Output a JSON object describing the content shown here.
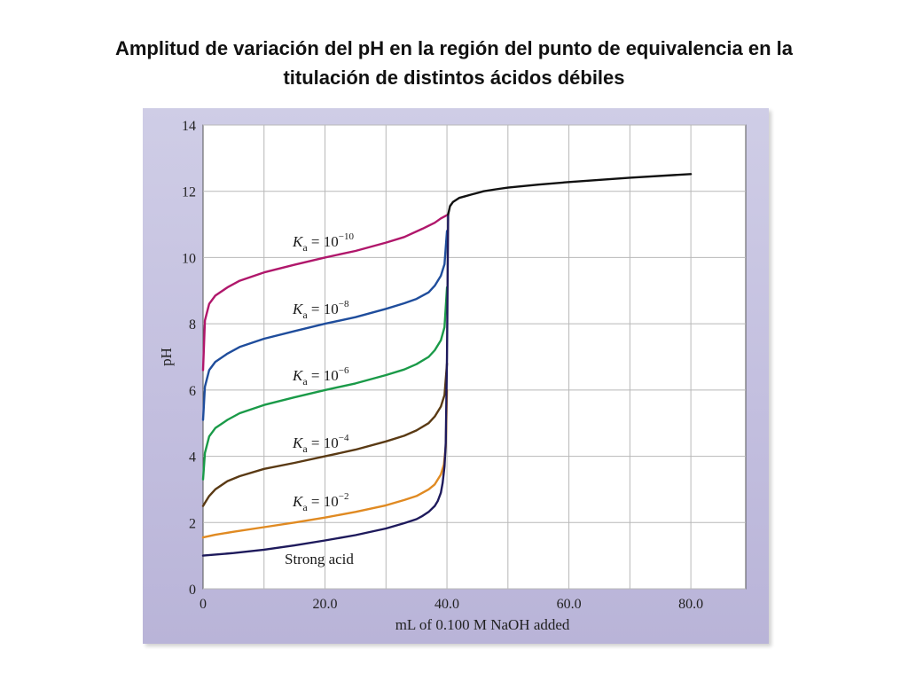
{
  "slide": {
    "title_line1": "Amplitud de variación del pH en la región del punto de equivalencia en la",
    "title_line2": "titulación de distintos ácidos débiles"
  },
  "chart_data": {
    "type": "line",
    "xlabel": "mL of 0.100 M NaOH added",
    "ylabel": "pH",
    "xlim": [
      0,
      89
    ],
    "ylim": [
      0,
      14
    ],
    "xticks": [
      0,
      20,
      40,
      60,
      80
    ],
    "xtick_labels": [
      "0",
      "20.0",
      "40.0",
      "60.0",
      "80.0"
    ],
    "yticks": [
      0,
      2,
      4,
      6,
      8,
      10,
      12,
      14
    ],
    "ytick_labels": [
      "0",
      "2",
      "4",
      "6",
      "8",
      "10",
      "12",
      "14"
    ],
    "grid": true,
    "common_tail": {
      "x": [
        40.2,
        40.5,
        41,
        42,
        43,
        44,
        45,
        46,
        48,
        50,
        55,
        60,
        70,
        80
      ],
      "y": [
        11.3,
        11.55,
        11.68,
        11.8,
        11.85,
        11.9,
        11.95,
        12.0,
        12.06,
        12.11,
        12.2,
        12.28,
        12.41,
        12.52
      ]
    },
    "series": [
      {
        "label_base": "K",
        "label_sub": "a",
        "label_eq": " = 10",
        "label_exp": "−10",
        "color": "#b0176b",
        "x": [
          0,
          0.3,
          1,
          2,
          4,
          6,
          10,
          15,
          20,
          25,
          30,
          33,
          36,
          38,
          39,
          40.2
        ],
        "y": [
          6.6,
          8.1,
          8.6,
          8.85,
          9.1,
          9.3,
          9.55,
          9.78,
          10.0,
          10.2,
          10.45,
          10.62,
          10.87,
          11.05,
          11.18,
          11.3
        ]
      },
      {
        "label_base": "K",
        "label_sub": "a",
        "label_eq": " = 10",
        "label_exp": "−8",
        "color": "#1f4d9c",
        "x": [
          0,
          0.3,
          1,
          2,
          4,
          6,
          10,
          15,
          20,
          25,
          30,
          33,
          35,
          37,
          38,
          39,
          39.6,
          40
        ],
        "y": [
          5.1,
          6.1,
          6.6,
          6.85,
          7.1,
          7.3,
          7.55,
          7.78,
          8.0,
          8.2,
          8.45,
          8.62,
          8.75,
          8.95,
          9.15,
          9.45,
          9.8,
          10.8
        ]
      },
      {
        "label_base": "K",
        "label_sub": "a",
        "label_eq": " = 10",
        "label_exp": "−6",
        "color": "#1a9a48",
        "x": [
          0,
          0.3,
          1,
          2,
          4,
          6,
          10,
          15,
          20,
          25,
          30,
          33,
          35,
          37,
          38,
          39,
          39.6,
          40
        ],
        "y": [
          3.3,
          4.1,
          4.6,
          4.85,
          5.1,
          5.3,
          5.55,
          5.78,
          6.0,
          6.2,
          6.45,
          6.62,
          6.78,
          7.0,
          7.2,
          7.5,
          7.9,
          9.1
        ]
      },
      {
        "label_base": "K",
        "label_sub": "a",
        "label_eq": " = 10",
        "label_exp": "−4",
        "color": "#5a3a14",
        "x": [
          0,
          0.5,
          1,
          2,
          4,
          6,
          10,
          15,
          20,
          25,
          30,
          33,
          35,
          37,
          38,
          39,
          39.6,
          40
        ],
        "y": [
          2.5,
          2.65,
          2.8,
          3.0,
          3.25,
          3.4,
          3.62,
          3.8,
          4.0,
          4.2,
          4.45,
          4.62,
          4.78,
          5.0,
          5.2,
          5.5,
          5.85,
          6.8
        ]
      },
      {
        "label_base": "K",
        "label_sub": "a",
        "label_eq": " = 10",
        "label_exp": "−2",
        "color": "#e08a22",
        "x": [
          0,
          2,
          5,
          10,
          15,
          20,
          25,
          30,
          33,
          35,
          37,
          38,
          39,
          39.5,
          39.8,
          40
        ],
        "y": [
          1.55,
          1.63,
          1.72,
          1.86,
          2.0,
          2.15,
          2.32,
          2.52,
          2.68,
          2.8,
          3.0,
          3.15,
          3.45,
          3.75,
          4.3,
          6.0
        ]
      },
      {
        "label": "Strong acid",
        "color": "#1e1a5c",
        "x": [
          0,
          5,
          10,
          15,
          20,
          25,
          30,
          33,
          35,
          36,
          37,
          38,
          38.5,
          39,
          39.3,
          39.6,
          39.8,
          40,
          40.2
        ],
        "y": [
          1.0,
          1.08,
          1.18,
          1.31,
          1.46,
          1.62,
          1.82,
          1.98,
          2.1,
          2.2,
          2.32,
          2.5,
          2.65,
          2.9,
          3.2,
          3.7,
          4.4,
          7.0,
          11.3
        ]
      }
    ]
  }
}
